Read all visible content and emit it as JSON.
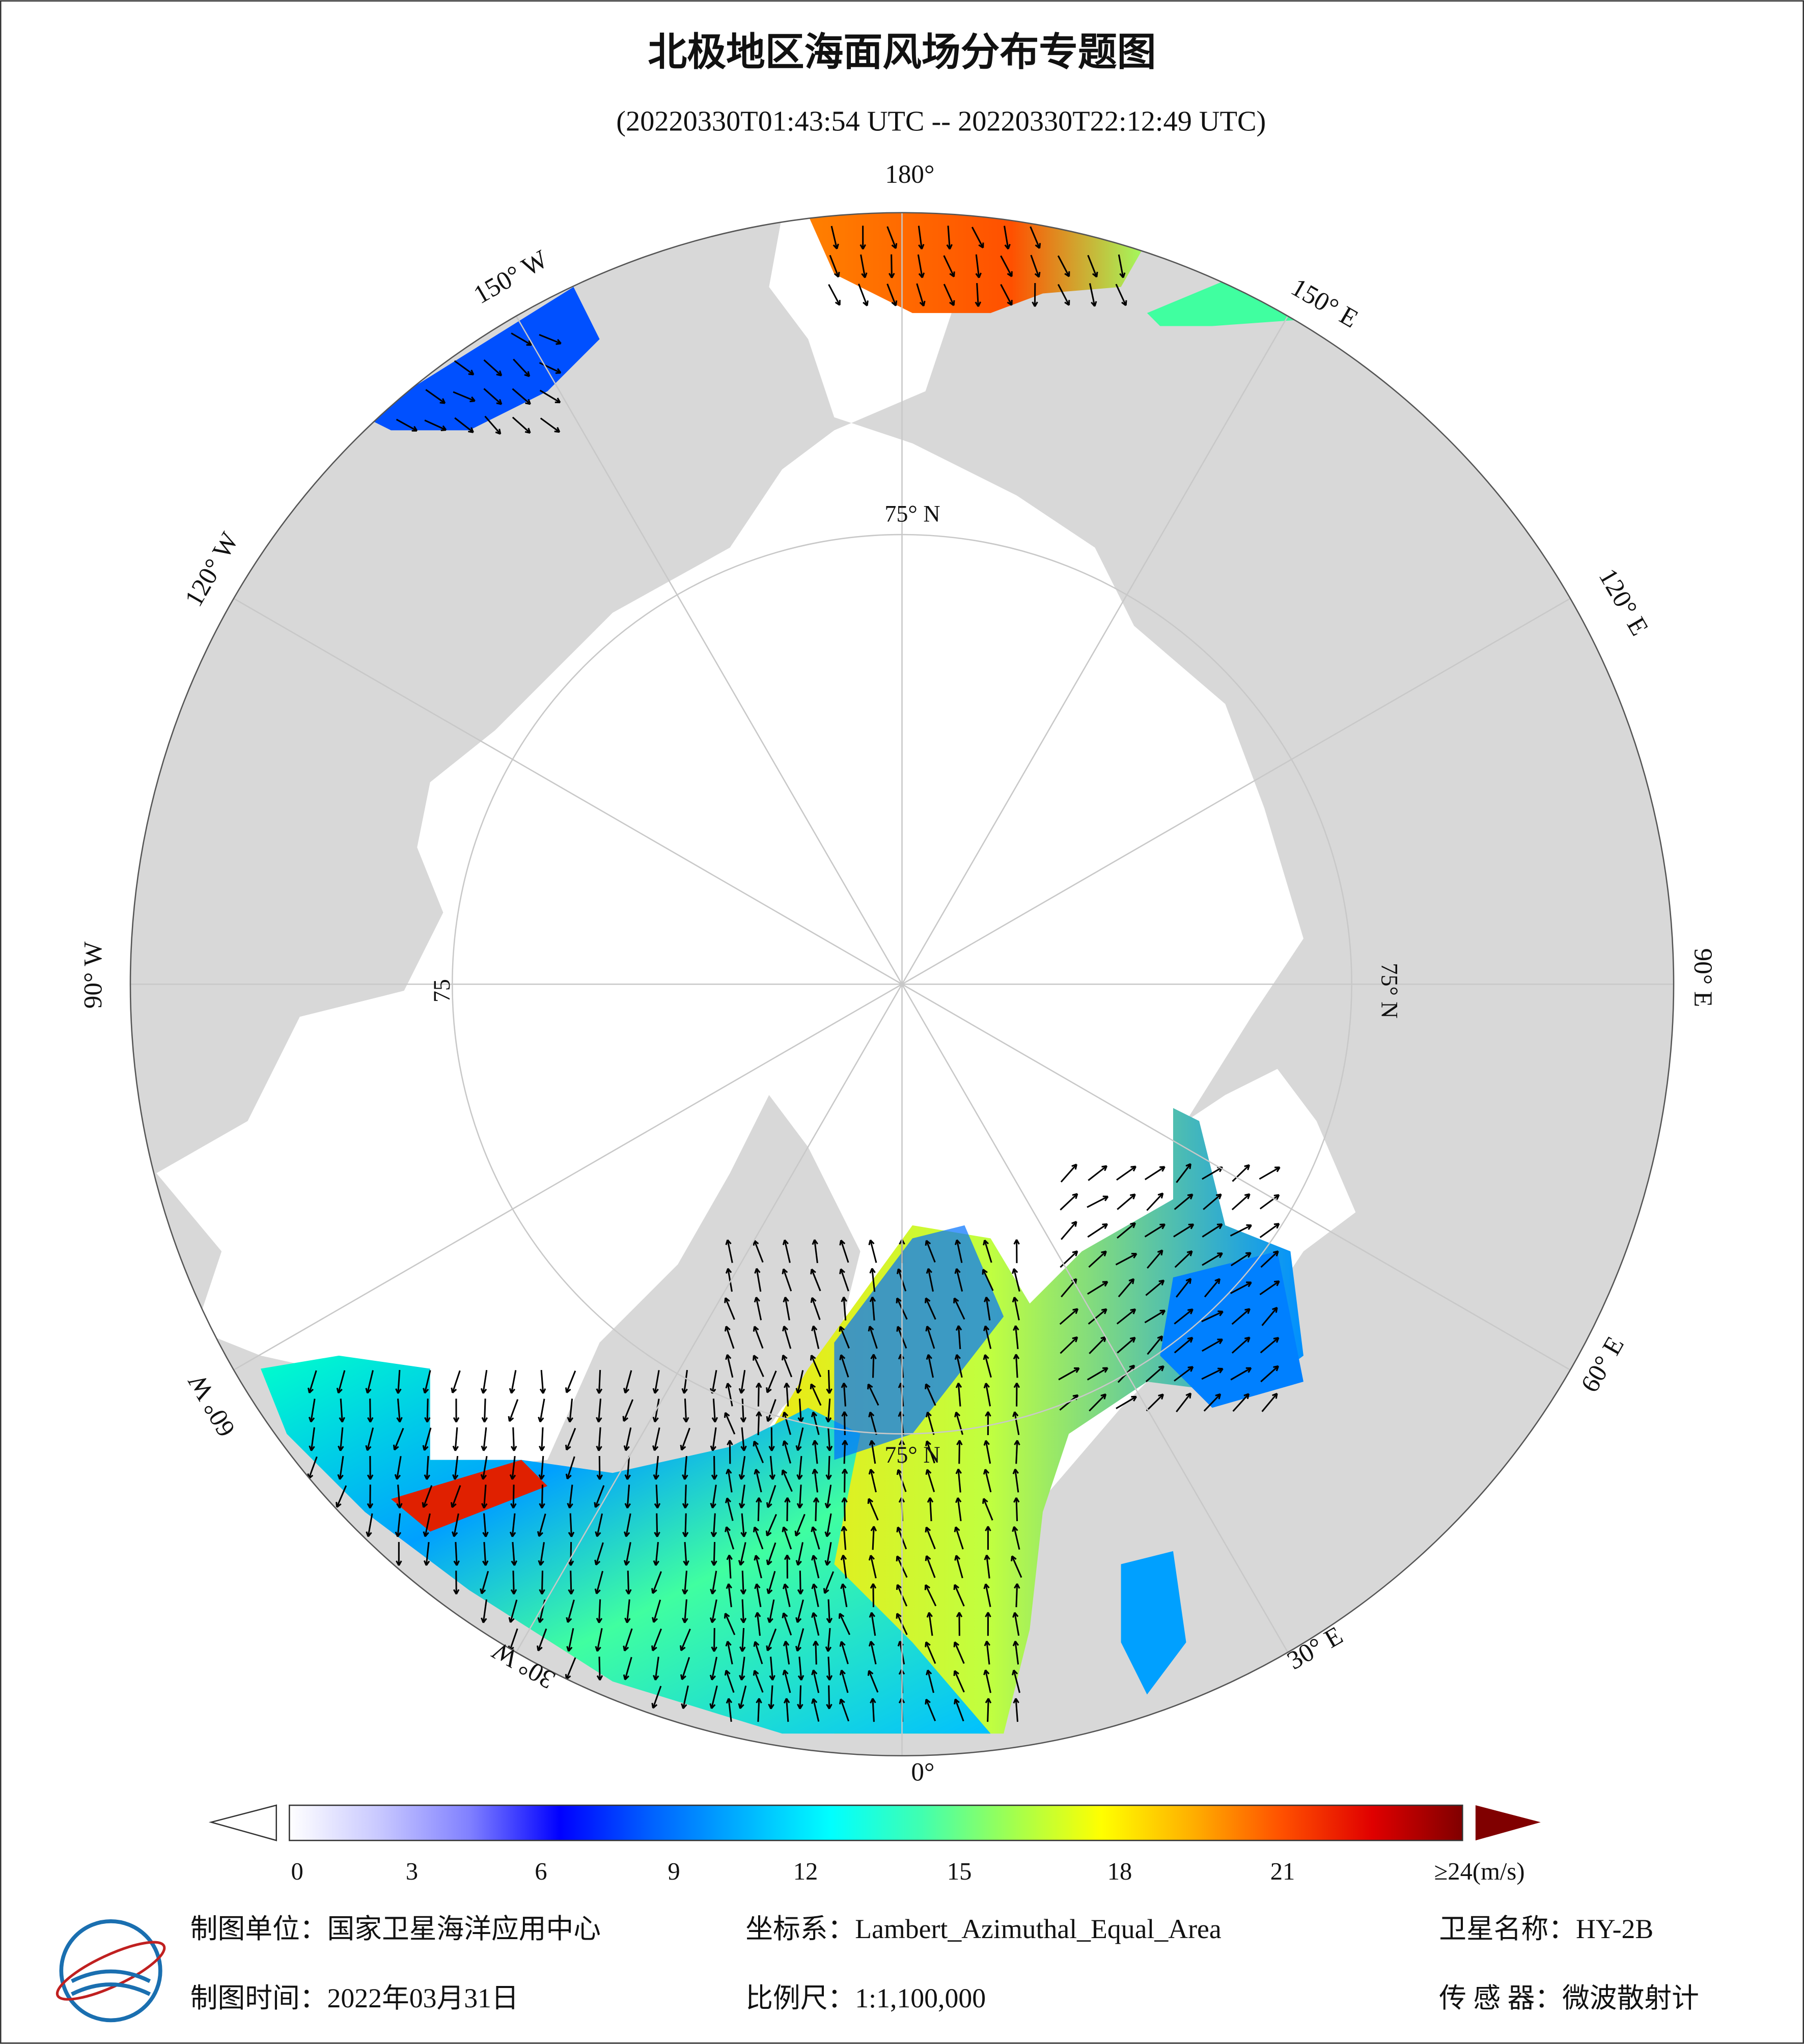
{
  "title": "北极地区海面风场分布专题图",
  "subtitle": "(20220330T01:43:54 UTC -- 20220330T22:12:49 UTC)",
  "map": {
    "graticule_labels": [
      "180°",
      "150° E",
      "120° E",
      "90° E",
      "60° E",
      "30° E",
      "0°",
      "30° W",
      "60° W",
      "90° W",
      "120° W",
      "150° W"
    ],
    "latitude_labels": [
      "75° N",
      "75° N",
      "75° N",
      "75"
    ]
  },
  "colorbar": {
    "ticks": [
      0,
      3,
      6,
      9,
      12,
      15,
      18,
      21
    ],
    "max_label": "≥24(m/s)",
    "colors": [
      "#ffffff",
      "#c8c8ff",
      "#8080ff",
      "#0000ff",
      "#0060ff",
      "#00b0ff",
      "#00ffff",
      "#40ffb0",
      "#a0ff50",
      "#ffff00",
      "#ffb000",
      "#ff5000",
      "#e00000",
      "#800000"
    ]
  },
  "footer": {
    "unit": "制图单位：国家卫星海洋应用中心",
    "projection": "坐标系：Lambert_Azimuthal_Equal_Area",
    "satellite": "卫星名称：HY-2B",
    "date": "制图时间：2022年03月31日",
    "scale": "比例尺：1:1,100,000",
    "sensor": "传 感 器：微波散射计"
  }
}
